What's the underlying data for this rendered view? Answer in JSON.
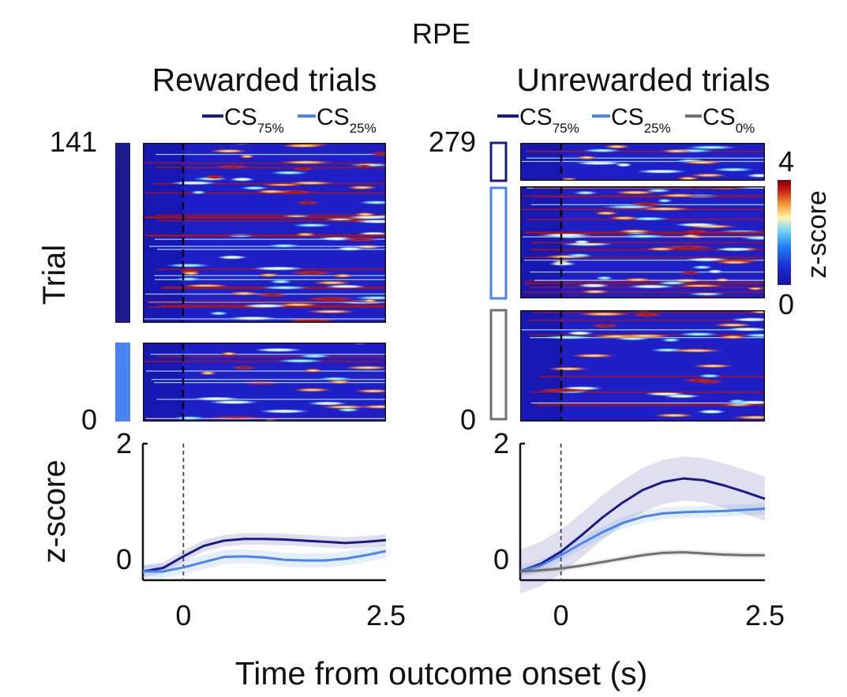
{
  "figure": {
    "title": "RPE",
    "xlabel": "Time from outcome onset (s)",
    "colorbar": {
      "label": "z-score",
      "max": "4",
      "min": "0",
      "stops": [
        "#14149a",
        "#1a2fd6",
        "#1e7cf0",
        "#73d7f5",
        "#fff4b0",
        "#f5a03a",
        "#c81e16",
        "#7a0000"
      ]
    }
  },
  "panels": {
    "rewarded": {
      "title": "Rewarded trials",
      "trial_axis": {
        "label": "Trial",
        "top": "141",
        "bottom": "0"
      },
      "legend": [
        {
          "main": "CS",
          "sub": "75%",
          "color": "#1a1a8c"
        },
        {
          "main": "CS",
          "sub": "25%",
          "color": "#4a84f0"
        }
      ],
      "groups": [
        {
          "condition": "CS75%",
          "color": "#1a1a8c",
          "trials": 104
        },
        {
          "condition": "CS25%",
          "color": "#4a84f0",
          "trials": 37
        }
      ]
    },
    "unrewarded": {
      "title": "Unrewarded trials",
      "trial_axis": {
        "label": "",
        "top": "279",
        "bottom": "0"
      },
      "legend": [
        {
          "main": "CS",
          "sub": "75%",
          "color": "#1a1a8c"
        },
        {
          "main": "CS",
          "sub": "25%",
          "color": "#4a84f0"
        },
        {
          "main": "CS",
          "sub": "0%",
          "color": "#707070"
        }
      ],
      "groups": [
        {
          "condition": "CS75%",
          "color": "#1a1a8c",
          "trials": 35
        },
        {
          "condition": "CS25%",
          "color": "#4a84f0",
          "trials": 117
        },
        {
          "condition": "CS0%",
          "color": "#707070",
          "trials": 127
        }
      ]
    }
  },
  "chart_data": [
    {
      "type": "line",
      "title": "Rewarded trials",
      "xlabel": "Time from outcome onset (s)",
      "ylabel": "z-score",
      "xlim": [
        -0.5,
        2.5
      ],
      "ylim": [
        -0.35,
        2
      ],
      "xticks": [
        "0",
        "2.5"
      ],
      "yticks": [
        "0",
        "2"
      ],
      "x": [
        -0.5,
        -0.25,
        0,
        0.25,
        0.5,
        0.75,
        1,
        1.25,
        1.5,
        1.75,
        2,
        2.25,
        2.5
      ],
      "series": [
        {
          "name": "CS75%",
          "color": "#1a1a8c",
          "values": [
            -0.2,
            -0.14,
            0.06,
            0.24,
            0.33,
            0.36,
            0.36,
            0.35,
            0.33,
            0.31,
            0.29,
            0.31,
            0.34
          ],
          "sem": 0.1
        },
        {
          "name": "CS25%",
          "color": "#4a84f0",
          "values": [
            -0.2,
            -0.2,
            -0.13,
            -0.04,
            0.05,
            0.06,
            0.04,
            0.0,
            -0.01,
            -0.01,
            0.02,
            0.08,
            0.15
          ],
          "sem": 0.12
        }
      ]
    },
    {
      "type": "line",
      "title": "Unrewarded trials",
      "xlabel": "Time from outcome onset (s)",
      "ylabel": "",
      "xlim": [
        -0.5,
        2.5
      ],
      "ylim": [
        -0.35,
        2
      ],
      "xticks": [
        "0",
        "2.5"
      ],
      "yticks": [
        "0",
        "2"
      ],
      "x": [
        -0.5,
        -0.25,
        0,
        0.25,
        0.5,
        0.75,
        1,
        1.25,
        1.5,
        1.75,
        2,
        2.25,
        2.5
      ],
      "series": [
        {
          "name": "CS75%",
          "color": "#1a1a8c",
          "values": [
            -0.2,
            -0.07,
            0.14,
            0.42,
            0.72,
            0.98,
            1.2,
            1.34,
            1.4,
            1.37,
            1.28,
            1.17,
            1.05
          ],
          "sem": 0.38
        },
        {
          "name": "CS25%",
          "color": "#4a84f0",
          "values": [
            -0.2,
            -0.1,
            0.08,
            0.28,
            0.47,
            0.63,
            0.74,
            0.8,
            0.82,
            0.83,
            0.84,
            0.86,
            0.88
          ],
          "sem": 0.1
        },
        {
          "name": "CS0%",
          "color": "#707070",
          "values": [
            -0.2,
            -0.18,
            -0.15,
            -0.1,
            -0.04,
            0.02,
            0.08,
            0.12,
            0.13,
            0.11,
            0.09,
            0.08,
            0.08
          ],
          "sem": 0.05
        }
      ]
    }
  ]
}
